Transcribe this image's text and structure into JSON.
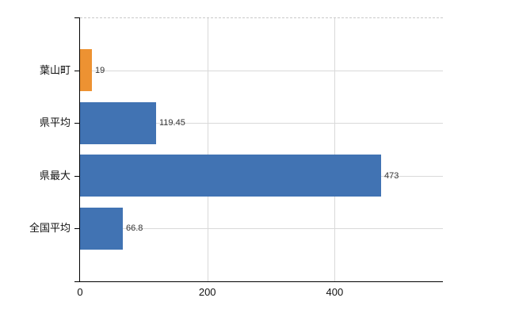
{
  "chart_data": {
    "type": "bar",
    "orientation": "horizontal",
    "title": "",
    "categories": [
      "葉山町",
      "県平均",
      "県最大",
      "全国平均"
    ],
    "values": [
      19,
      119.45,
      473,
      66.8
    ],
    "value_labels": [
      "19",
      "119.45",
      "473",
      "66.8"
    ],
    "bar_colors": [
      "#ed9232",
      "#4173b3",
      "#4173b3",
      "#4173b3"
    ],
    "highlight_color": "#ed9232",
    "default_color": "#4173b3",
    "x_tick_labels": [
      "0",
      "200",
      "400"
    ],
    "x_tick_values": [
      0,
      200,
      400
    ],
    "xlim": [
      0,
      570
    ],
    "xlabel": "",
    "ylabel": "",
    "grid": "on",
    "legend": "none",
    "gridline_color": "#d9d9d9",
    "top_border_style": "dashed",
    "axis_color": "#000000"
  }
}
